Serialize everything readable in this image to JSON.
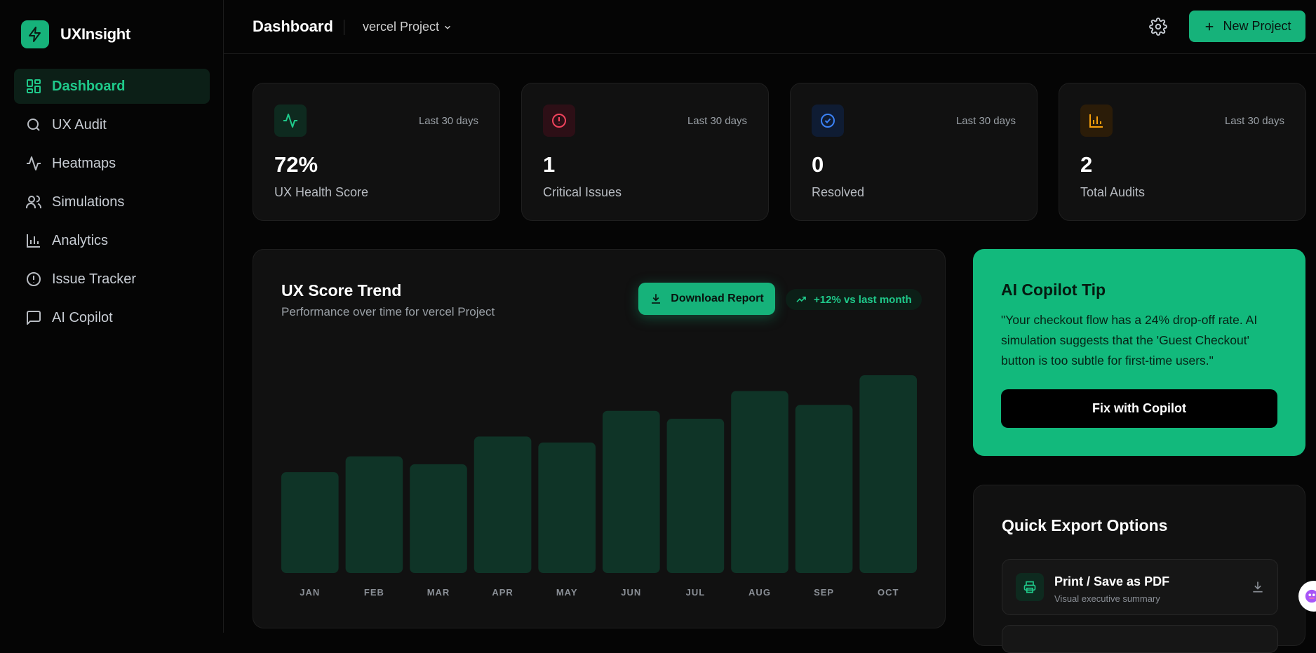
{
  "app": {
    "name": "UXInsight",
    "accent": "#16b27a"
  },
  "sidebar": {
    "items": [
      {
        "label": "Dashboard",
        "icon": "grid-icon",
        "active": true
      },
      {
        "label": "UX Audit",
        "icon": "search-icon"
      },
      {
        "label": "Heatmaps",
        "icon": "activity-icon"
      },
      {
        "label": "Simulations",
        "icon": "users-icon"
      },
      {
        "label": "Analytics",
        "icon": "bar-chart-icon"
      },
      {
        "label": "Issue Tracker",
        "icon": "alert-circle-icon"
      },
      {
        "label": "AI Copilot",
        "icon": "message-square-icon"
      }
    ]
  },
  "header": {
    "title": "Dashboard",
    "project": "vercel Project",
    "new_project_label": "New Project"
  },
  "stats": [
    {
      "period": "Last 30 days",
      "value": "72%",
      "label": "UX Health Score",
      "icon": "activity-icon",
      "color": "#1fc98a"
    },
    {
      "period": "Last 30 days",
      "value": "1",
      "label": "Critical Issues",
      "icon": "alert-circle-icon",
      "color": "#f0435c"
    },
    {
      "period": "Last 30 days",
      "value": "0",
      "label": "Resolved",
      "icon": "check-circle-icon",
      "color": "#3b82f6"
    },
    {
      "period": "Last 30 days",
      "value": "2",
      "label": "Total Audits",
      "icon": "bar-chart-icon",
      "color": "#f59e0b"
    }
  ],
  "trend_card": {
    "title": "UX Score Trend",
    "subtitle": "Performance over time for vercel Project",
    "download_label": "Download Report",
    "badge": "+12% vs last month"
  },
  "chart_data": {
    "type": "bar",
    "categories": [
      "JAN",
      "FEB",
      "MAR",
      "APR",
      "MAY",
      "JUN",
      "JUL",
      "AUG",
      "SEP",
      "OCT"
    ],
    "values": [
      51,
      59,
      55,
      69,
      66,
      82,
      78,
      92,
      85,
      100
    ],
    "title": "UX Score Trend",
    "xlabel": "",
    "ylabel": "",
    "ylim": [
      0,
      100
    ],
    "grid": false,
    "bar_color": "#0f3427"
  },
  "tip": {
    "title": "AI Copilot Tip",
    "text": "\"Your checkout flow has a 24% drop-off rate. AI simulation suggests that the 'Guest Checkout' button is too subtle for first-time users.\"",
    "button": "Fix with Copilot"
  },
  "export": {
    "title": "Quick Export Options",
    "items": [
      {
        "title": "Print / Save as PDF",
        "subtitle": "Visual executive summary",
        "icon": "printer-icon"
      }
    ]
  }
}
